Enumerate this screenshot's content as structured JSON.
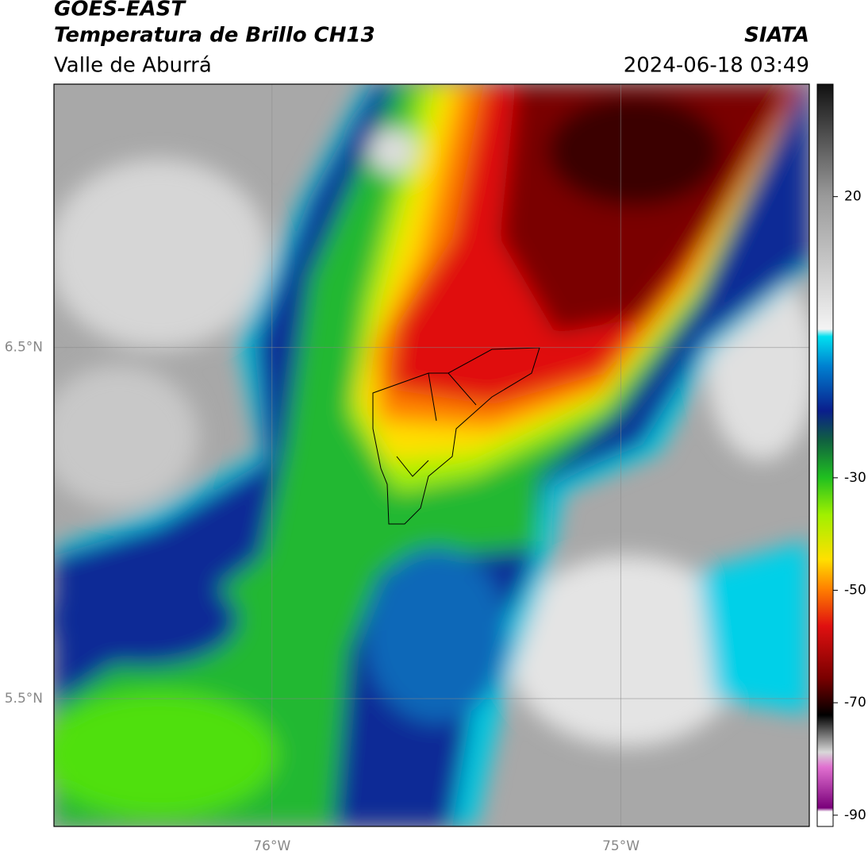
{
  "header": {
    "title": "GOES-EAST",
    "subtitle": "Temperatura de Brillo CH13",
    "region": "Valle de Aburrá",
    "source": "SIATA",
    "datetime": "2024-06-18 03:49"
  },
  "map": {
    "xlim": [
      -76.625,
      -74.46
    ],
    "ylim": [
      5.136,
      7.25
    ],
    "xticks": [
      {
        "value": -76,
        "label": "76°W"
      },
      {
        "value": -75,
        "label": "75°W"
      }
    ],
    "yticks": [
      {
        "value": 6.5,
        "label": "6.5°N"
      },
      {
        "value": 5.5,
        "label": "5.5°N"
      }
    ],
    "grid": true
  },
  "colorbar": {
    "clim": [
      -92,
      40
    ],
    "ticks": [
      20,
      -30,
      -50,
      -70,
      -90
    ]
  }
}
